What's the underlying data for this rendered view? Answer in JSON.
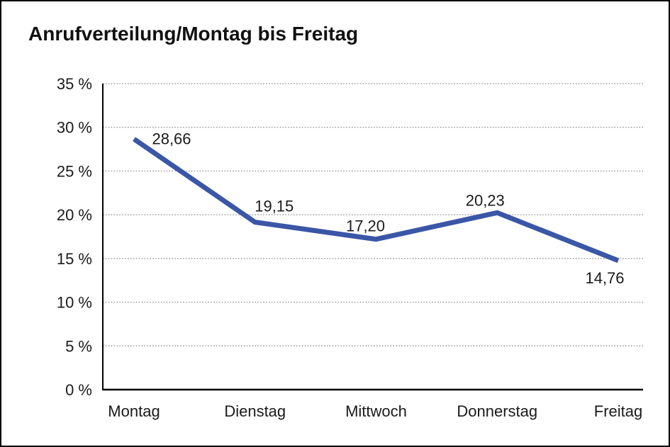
{
  "title": "Anrufverteilung/Montag bis Freitag",
  "chart_data": {
    "type": "line",
    "title": "Anrufverteilung/Montag bis Freitag",
    "categories": [
      "Montag",
      "Dienstag",
      "Mittwoch",
      "Donnerstag",
      "Freitag"
    ],
    "values": [
      28.66,
      19.15,
      17.2,
      20.23,
      14.76
    ],
    "value_labels": [
      "28,66",
      "19,15",
      "17,20",
      "20,23",
      "14,76"
    ],
    "xlabel": "",
    "ylabel": "",
    "ylim": [
      0,
      35
    ],
    "y_tick_step": 5,
    "y_tick_labels": [
      "0 %",
      "5 %",
      "10 %",
      "15 %",
      "20 %",
      "25 %",
      "30 %",
      "35 %"
    ],
    "grid": "horizontal-dotted",
    "legend": "none",
    "series_color": "#3A56A6"
  },
  "colors": {
    "line": "#3A56A6",
    "grid": "#848484",
    "axis": "#000000",
    "text": "#1a1a1a",
    "background": "#ffffff",
    "frame_border": "#000000"
  }
}
